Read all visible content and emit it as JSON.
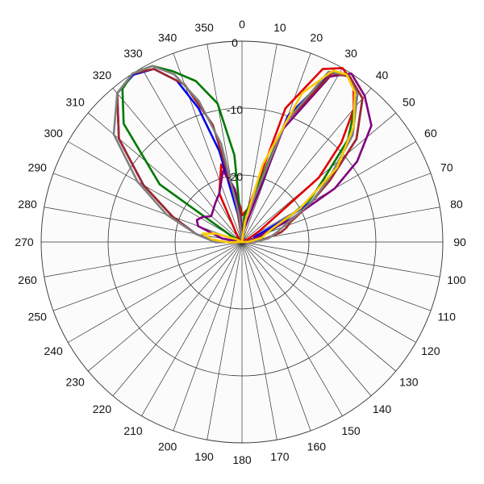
{
  "chart_data": {
    "type": "line",
    "subtype": "polar",
    "direction": "clockwise",
    "zero_angle": "top",
    "angle_ticks": [
      0,
      10,
      20,
      30,
      40,
      50,
      60,
      70,
      80,
      90,
      100,
      110,
      120,
      130,
      140,
      150,
      160,
      170,
      180,
      190,
      200,
      210,
      220,
      230,
      240,
      250,
      260,
      270,
      280,
      290,
      300,
      310,
      320,
      330,
      340,
      350
    ],
    "radial_range": [
      -30,
      0
    ],
    "radial_ticks": [
      0,
      -10,
      -20
    ],
    "grid": true,
    "legend": "none",
    "series": [
      {
        "color": "#e00000",
        "points": [
          [
            0,
            -26
          ],
          [
            10,
            -25
          ],
          [
            18,
            -9
          ],
          [
            25,
            -1.5
          ],
          [
            30,
            0
          ],
          [
            35,
            -1
          ],
          [
            40,
            -4
          ],
          [
            45,
            -9
          ],
          [
            50,
            -15
          ],
          [
            58,
            -27
          ],
          [
            65,
            -29
          ],
          [
            80,
            -30
          ],
          [
            90,
            -28
          ],
          [
            100,
            -30
          ],
          [
            260,
            -30
          ],
          [
            270,
            -29.8
          ],
          [
            285,
            -30
          ],
          [
            300,
            -30
          ],
          [
            320,
            -29
          ],
          [
            335,
            -22
          ],
          [
            345,
            -18
          ],
          [
            352,
            -22
          ],
          [
            358,
            -25
          ]
        ]
      },
      {
        "color": "#0000ee",
        "points": [
          [
            0,
            -30
          ],
          [
            10,
            -26
          ],
          [
            20,
            -10
          ],
          [
            28,
            -1
          ],
          [
            33,
            -0.5
          ],
          [
            40,
            -2
          ],
          [
            48,
            -7
          ],
          [
            55,
            -14
          ],
          [
            60,
            -18
          ],
          [
            62,
            -23
          ],
          [
            64,
            -26
          ],
          [
            68,
            -28
          ],
          [
            72,
            -27.5
          ],
          [
            80,
            -28
          ],
          [
            90,
            -29.5
          ],
          [
            100,
            -30
          ],
          [
            260,
            -30
          ],
          [
            270,
            -26
          ],
          [
            280,
            -23
          ],
          [
            290,
            -19
          ],
          [
            300,
            -13
          ],
          [
            310,
            -6
          ],
          [
            320,
            -1
          ],
          [
            327,
            -0.2
          ],
          [
            333,
            -1
          ],
          [
            338,
            -4
          ],
          [
            342,
            -9
          ],
          [
            346,
            -16
          ],
          [
            352,
            -26
          ],
          [
            358,
            -30
          ]
        ]
      },
      {
        "color": "#007800",
        "points": [
          [
            0,
            -30
          ],
          [
            5,
            -26
          ],
          [
            10,
            -25
          ],
          [
            20,
            -11
          ],
          [
            27,
            -1.5
          ],
          [
            32,
            -0.5
          ],
          [
            38,
            -2
          ],
          [
            46,
            -8
          ],
          [
            53,
            -15
          ],
          [
            58,
            -18
          ],
          [
            62,
            -22
          ],
          [
            66,
            -24
          ],
          [
            70,
            -26
          ],
          [
            80,
            -28
          ],
          [
            90,
            -29.5
          ],
          [
            100,
            -30
          ],
          [
            260,
            -30
          ],
          [
            270,
            -29
          ],
          [
            280,
            -29.2
          ],
          [
            295,
            -30
          ],
          [
            300,
            -28
          ],
          [
            305,
            -15
          ],
          [
            315,
            -5
          ],
          [
            322,
            -1
          ],
          [
            327,
            0
          ],
          [
            333,
            -0.5
          ],
          [
            338,
            -2.5
          ],
          [
            344,
            -5
          ],
          [
            350,
            -9
          ],
          [
            355,
            -17
          ],
          [
            358,
            -28
          ]
        ]
      },
      {
        "color": "#800080",
        "points": [
          [
            0,
            -30
          ],
          [
            10,
            -28
          ],
          [
            20,
            -12
          ],
          [
            28,
            -2
          ],
          [
            33,
            0
          ],
          [
            40,
            -1.5
          ],
          [
            48,
            -4
          ],
          [
            55,
            -9
          ],
          [
            60,
            -14
          ],
          [
            65,
            -22
          ],
          [
            68,
            -26
          ],
          [
            75,
            -28
          ],
          [
            85,
            -29
          ],
          [
            95,
            -29.5
          ],
          [
            100,
            -30
          ],
          [
            260,
            -30
          ],
          [
            280,
            -27
          ],
          [
            290,
            -23
          ],
          [
            296,
            -22.5
          ],
          [
            302,
            -23
          ],
          [
            310,
            -24
          ],
          [
            325,
            -23
          ],
          [
            335,
            -22
          ],
          [
            345,
            -19
          ],
          [
            352,
            -22
          ],
          [
            358,
            -27
          ]
        ]
      },
      {
        "color": "#a02828",
        "points": [
          [
            0,
            -30
          ],
          [
            10,
            -26
          ],
          [
            20,
            -11
          ],
          [
            28,
            -1.5
          ],
          [
            33,
            -0.5
          ],
          [
            40,
            -2
          ],
          [
            48,
            -7
          ],
          [
            55,
            -14
          ],
          [
            60,
            -18
          ],
          [
            65,
            -21
          ],
          [
            68,
            -22.3
          ],
          [
            72,
            -23
          ],
          [
            76,
            -24
          ],
          [
            82,
            -26.5
          ],
          [
            90,
            -28
          ],
          [
            100,
            -30
          ],
          [
            260,
            -30
          ],
          [
            270,
            -26
          ],
          [
            280,
            -23
          ],
          [
            290,
            -19
          ],
          [
            300,
            -13
          ],
          [
            310,
            -6
          ],
          [
            320,
            -1
          ],
          [
            327,
            0
          ],
          [
            333,
            -1
          ],
          [
            340,
            -5
          ],
          [
            346,
            -12
          ],
          [
            352,
            -24
          ],
          [
            358,
            -30
          ]
        ]
      },
      {
        "color": "#808080",
        "points": [
          [
            0,
            -30
          ],
          [
            10,
            -26
          ],
          [
            20,
            -11
          ],
          [
            27,
            -1.5
          ],
          [
            32,
            -0.5
          ],
          [
            38,
            -2
          ],
          [
            46,
            -7
          ],
          [
            54,
            -14
          ],
          [
            60,
            -18
          ],
          [
            64,
            -21
          ],
          [
            68,
            -23
          ],
          [
            74,
            -24.5
          ],
          [
            82,
            -26
          ],
          [
            90,
            -28
          ],
          [
            100,
            -30
          ],
          [
            260,
            -30
          ],
          [
            270,
            -26
          ],
          [
            280,
            -23
          ],
          [
            290,
            -18
          ],
          [
            300,
            -12
          ],
          [
            310,
            -5
          ],
          [
            320,
            -1
          ],
          [
            327,
            0
          ],
          [
            333,
            -0.5
          ],
          [
            338,
            -3
          ],
          [
            343,
            -8
          ],
          [
            348,
            -15
          ],
          [
            354,
            -26
          ],
          [
            358,
            -30
          ]
        ]
      },
      {
        "color": "#ffc800",
        "points": [
          [
            0,
            -30
          ],
          [
            8,
            -27
          ],
          [
            15,
            -18
          ],
          [
            22,
            -6
          ],
          [
            28,
            -1
          ],
          [
            32,
            -0.5
          ],
          [
            37,
            -2
          ],
          [
            44,
            -6
          ],
          [
            52,
            -12
          ],
          [
            60,
            -20
          ],
          [
            66,
            -25
          ],
          [
            70,
            -26
          ],
          [
            78,
            -27
          ],
          [
            88,
            -29
          ],
          [
            95,
            -29.8
          ],
          [
            100,
            -30
          ],
          [
            260,
            -30
          ],
          [
            268,
            -28
          ],
          [
            275,
            -25.5
          ],
          [
            282,
            -24
          ],
          [
            288,
            -26
          ],
          [
            295,
            -29
          ],
          [
            300,
            -30
          ],
          [
            358,
            -30
          ]
        ]
      }
    ]
  }
}
